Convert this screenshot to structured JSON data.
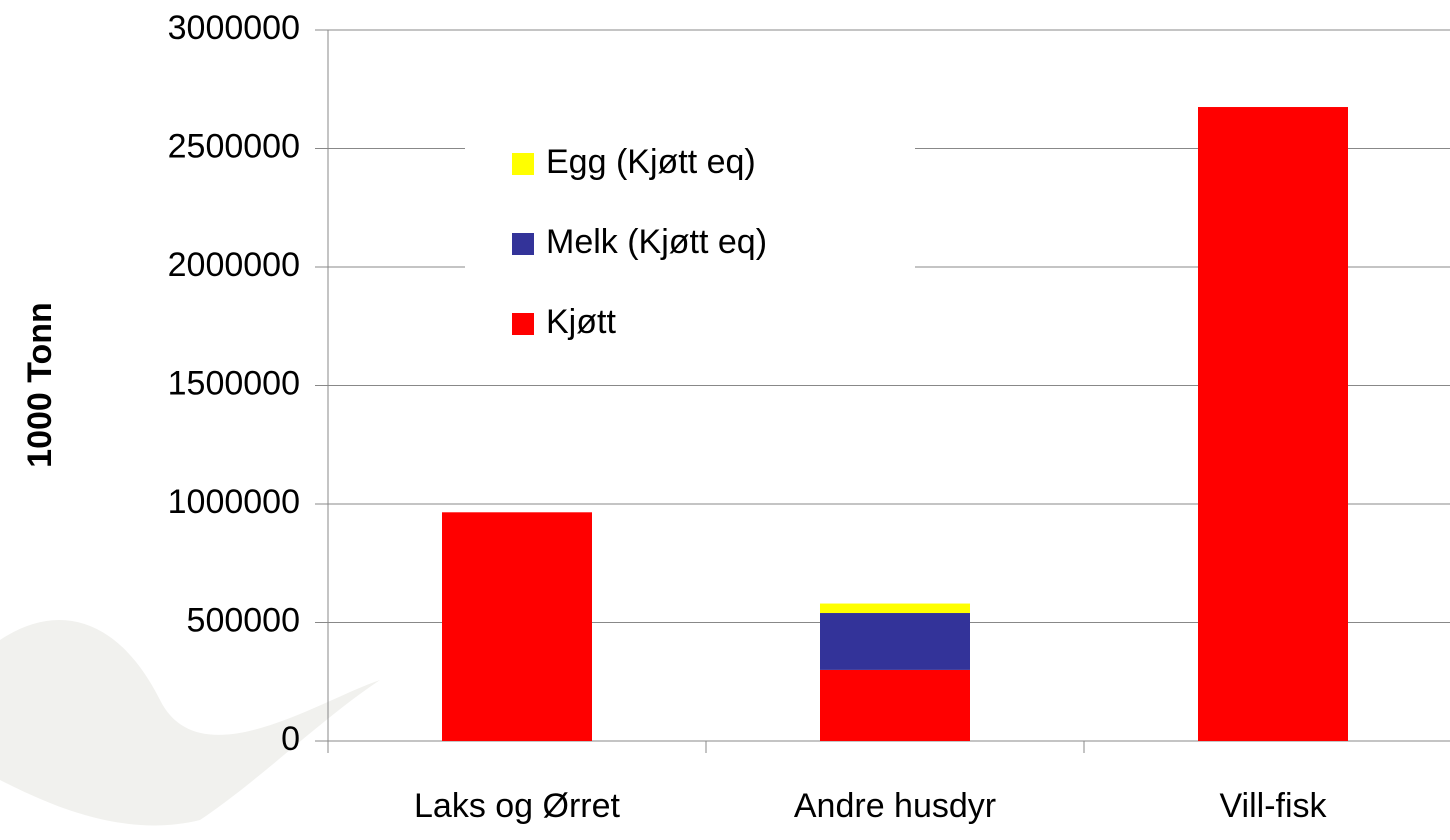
{
  "chart_data": {
    "type": "stacked_bar",
    "y_label": "1000 Tonn",
    "categories": [
      "Laks og Ørret",
      "Andre husdyr",
      "Vill-fisk"
    ],
    "series": [
      {
        "name": "Kjøtt",
        "color": "#ff0000",
        "values": [
          965000,
          300000,
          2675000
        ]
      },
      {
        "name": "Melk (Kjøtt eq)",
        "color": "#333399",
        "values": [
          null,
          240000,
          null
        ]
      },
      {
        "name": "Egg (Kjøtt eq)",
        "color": "#ffff00",
        "values": [
          null,
          40000,
          null
        ]
      }
    ],
    "ylim": [
      0,
      3000000
    ],
    "yticks": [
      0,
      500000,
      1000000,
      1500000,
      2000000,
      2500000,
      3000000
    ],
    "grid": true
  }
}
